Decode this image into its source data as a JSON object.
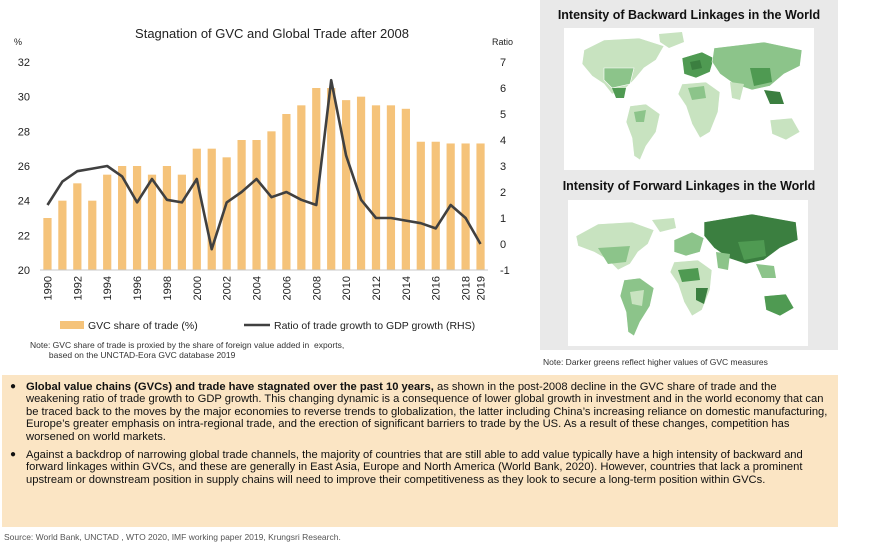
{
  "chart_data": {
    "type": "bar+line",
    "title": "Stagnation of GVC and Global Trade after 2008",
    "left_axis_unit": "%",
    "right_axis_unit": "Ratio",
    "y_left_lim": [
      20,
      32
    ],
    "y_left_ticks": [
      "20",
      "22",
      "24",
      "26",
      "28",
      "30",
      "32"
    ],
    "y_right_lim": [
      -1,
      7
    ],
    "y_right_ticks": [
      "-1",
      "0",
      "1",
      "2",
      "3",
      "4",
      "5",
      "6",
      "7"
    ],
    "x": [
      1990,
      1991,
      1992,
      1993,
      1994,
      1995,
      1996,
      1997,
      1998,
      1999,
      2000,
      2001,
      2002,
      2003,
      2004,
      2005,
      2006,
      2007,
      2008,
      2009,
      2010,
      2011,
      2012,
      2013,
      2014,
      2015,
      2016,
      2017,
      2018,
      2019
    ],
    "x_tick_labels": [
      "1990",
      "1992",
      "1994",
      "1996",
      "1998",
      "2000",
      "2002",
      "2004",
      "2006",
      "2008",
      "2010",
      "2012",
      "2014",
      "2016",
      "2018",
      "2019"
    ],
    "series": [
      {
        "name": "GVC share of trade (%)",
        "kind": "bar",
        "axis": "left",
        "color": "#f5c37a",
        "values": [
          23.0,
          24.0,
          25.0,
          24.0,
          25.5,
          26.0,
          26.0,
          25.5,
          26.0,
          25.5,
          27.0,
          27.0,
          26.5,
          27.5,
          27.5,
          28.0,
          29.0,
          29.5,
          30.5,
          30.5,
          29.8,
          30.0,
          29.5,
          29.5,
          29.3,
          27.4,
          27.4,
          27.3,
          27.3,
          27.3
        ]
      },
      {
        "name": "Ratio of trade growth to GDP growth (RHS)",
        "kind": "line",
        "axis": "right",
        "color": "#404040",
        "values": [
          1.5,
          2.4,
          2.8,
          2.9,
          3.0,
          2.6,
          1.6,
          2.5,
          1.7,
          1.6,
          2.5,
          -0.2,
          1.6,
          2.0,
          2.5,
          1.8,
          2.0,
          1.7,
          1.5,
          6.3,
          3.4,
          1.7,
          1.0,
          1.0,
          0.9,
          0.8,
          0.6,
          1.5,
          1.0,
          0.0
        ]
      }
    ],
    "legend_position": "bottom"
  },
  "chart_note": "Note: GVC share of trade is proxied by the share of foreign value added in  exports,\n        based on the UNCTAD-Eora GVC database 2019",
  "maps": {
    "backward_title": "Intensity of Backward Linkages in the World",
    "forward_title": "Intensity of Forward Linkages in the World",
    "note": "Note: Darker greens reflect higher values of GVC measures",
    "colors": {
      "light": "#c8e3c0",
      "mid": "#8cc48a",
      "dark": "#4f9a52",
      "darkest": "#3b7f40",
      "water": "#ffffff"
    }
  },
  "bullets": [
    {
      "bold": "Global value chains (GVCs) and trade have stagnated over the past 10 years,",
      "text": " as shown in the post-2008 decline in the GVC share of trade and the weakening ratio of trade growth to GDP growth. This changing dynamic is a consequence of lower global growth in investment and in the world economy that can be traced back to the moves by the major economies to reverse trends to globalization, the latter including China’s increasing reliance on domestic manufacturing, Europe’s greater emphasis on intra-regional trade, and the erection of significant barriers to trade by the US. As a result of these changes, competition has worsened on world markets."
    },
    {
      "bold": "",
      "text": "Against a backdrop of narrowing global trade channels, the majority of countries that are still able to add value typically have a high intensity of backward and forward linkages within GVCs, and these are generally in East Asia, Europe and North America (World Bank, 2020). However, countries that lack a prominent upstream or downstream position in supply chains will need to improve their competitiveness as they look to secure a long-term position within GVCs."
    }
  ],
  "source": "Source: World Bank, UNCTAD , WTO 2020, IMF working paper 2019, Krungsri Research."
}
